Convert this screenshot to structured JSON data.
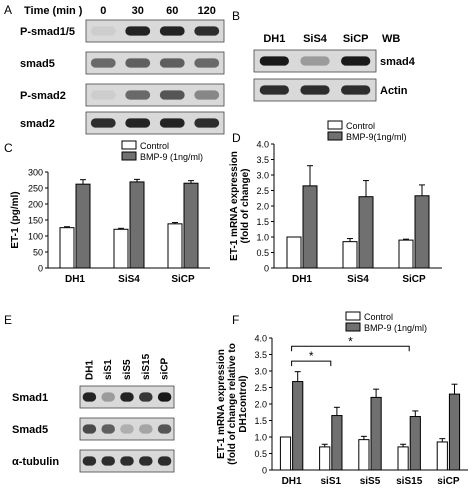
{
  "panels": {
    "A": {
      "letter": "A",
      "time_label": "Time (min )",
      "times": [
        "0",
        "30",
        "60",
        "120"
      ],
      "rows": [
        {
          "label": "P-smad1/5",
          "bands": [
            0.05,
            0.9,
            0.9,
            0.85
          ]
        },
        {
          "label": "smad5",
          "bands": [
            0.55,
            0.6,
            0.6,
            0.55
          ]
        },
        {
          "label": "P-smad2",
          "bands": [
            0.05,
            0.55,
            0.65,
            0.4
          ]
        },
        {
          "label": "smad2",
          "bands": [
            0.85,
            0.9,
            0.9,
            0.85
          ]
        }
      ]
    },
    "B": {
      "letter": "B",
      "lanes": [
        "DH1",
        "SiS4",
        "SiCP"
      ],
      "wb_label": "WB",
      "rows": [
        {
          "label": "smad4",
          "bands": [
            0.95,
            0.3,
            0.95
          ]
        },
        {
          "label": "Actin",
          "bands": [
            0.85,
            0.85,
            0.85
          ]
        }
      ]
    },
    "E": {
      "letter": "E",
      "lanes": [
        "DH1",
        "siS1",
        "siS5",
        "siS15",
        "siCP"
      ],
      "rows": [
        {
          "label": "Smad1",
          "bands": [
            0.9,
            0.3,
            0.9,
            0.8,
            0.95
          ]
        },
        {
          "label": "Smad5",
          "bands": [
            0.7,
            0.6,
            0.2,
            0.25,
            0.65
          ]
        },
        {
          "label": "α-tubulin",
          "bands": [
            0.85,
            0.85,
            0.85,
            0.85,
            0.85
          ]
        }
      ]
    }
  },
  "colors": {
    "control": "#ffffff",
    "bmp": "#707070",
    "axis": "#000000"
  },
  "chart_data": [
    {
      "panel": "C",
      "type": "bar",
      "ylabel": "ET-1 (pg/ml)",
      "categories": [
        "DH1",
        "SiS4",
        "SiCP"
      ],
      "yticks": [
        "0",
        "50",
        "100",
        "150",
        "200",
        "250",
        "300"
      ],
      "ylim": [
        0,
        300
      ],
      "legend_position": "top-right",
      "series": [
        {
          "name": "Control",
          "values": [
            126,
            121,
            138
          ],
          "errors": [
            3,
            3,
            4
          ]
        },
        {
          "name": "BMP-9 (1ng/ml)",
          "values": [
            262,
            269,
            265
          ],
          "errors": [
            14,
            8,
            8
          ]
        }
      ]
    },
    {
      "panel": "D",
      "type": "bar",
      "ylabel": "ET-1 mRNA expression\n(fold of change)",
      "categories": [
        "DH1",
        "SiS4",
        "SiCP"
      ],
      "yticks": [
        "0",
        "0.5",
        "1.0",
        "1.5",
        "2.0",
        "2.5",
        "3.0",
        "3.5",
        "4.0"
      ],
      "ylim": [
        0,
        4.0
      ],
      "legend_position": "top-left",
      "series": [
        {
          "name": "Control",
          "values": [
            1.0,
            0.85,
            0.9
          ],
          "errors": [
            0.0,
            0.1,
            0.03
          ]
        },
        {
          "name": "BMP-9(1ng/ml)",
          "values": [
            2.65,
            2.3,
            2.33
          ],
          "errors": [
            0.65,
            0.52,
            0.35
          ]
        }
      ]
    },
    {
      "panel": "F",
      "type": "bar",
      "ylabel": "ET-1 mRNA expression\n(fold of change relative to\nDH1control)",
      "categories": [
        "DH1",
        "siS1",
        "siS5",
        "siS15",
        "siCP"
      ],
      "yticks": [
        "0",
        "0.5",
        "1.0",
        "1.5",
        "2.0",
        "2.5",
        "3.0",
        "3.5",
        "4.0"
      ],
      "ylim": [
        0,
        4.0
      ],
      "legend_position": "top-right",
      "series": [
        {
          "name": "Control",
          "values": [
            1.0,
            0.7,
            0.92,
            0.7,
            0.85
          ],
          "errors": [
            0.0,
            0.08,
            0.1,
            0.08,
            0.1
          ]
        },
        {
          "name": "BMP-9 (1ng/ml)",
          "values": [
            2.68,
            1.65,
            2.2,
            1.62,
            2.3
          ],
          "errors": [
            0.3,
            0.25,
            0.25,
            0.17,
            0.3
          ]
        }
      ],
      "annotations": [
        {
          "from": "DH1",
          "to": "siS1",
          "text": "*"
        },
        {
          "from": "DH1",
          "to": "siS15",
          "text": "*"
        }
      ]
    }
  ]
}
